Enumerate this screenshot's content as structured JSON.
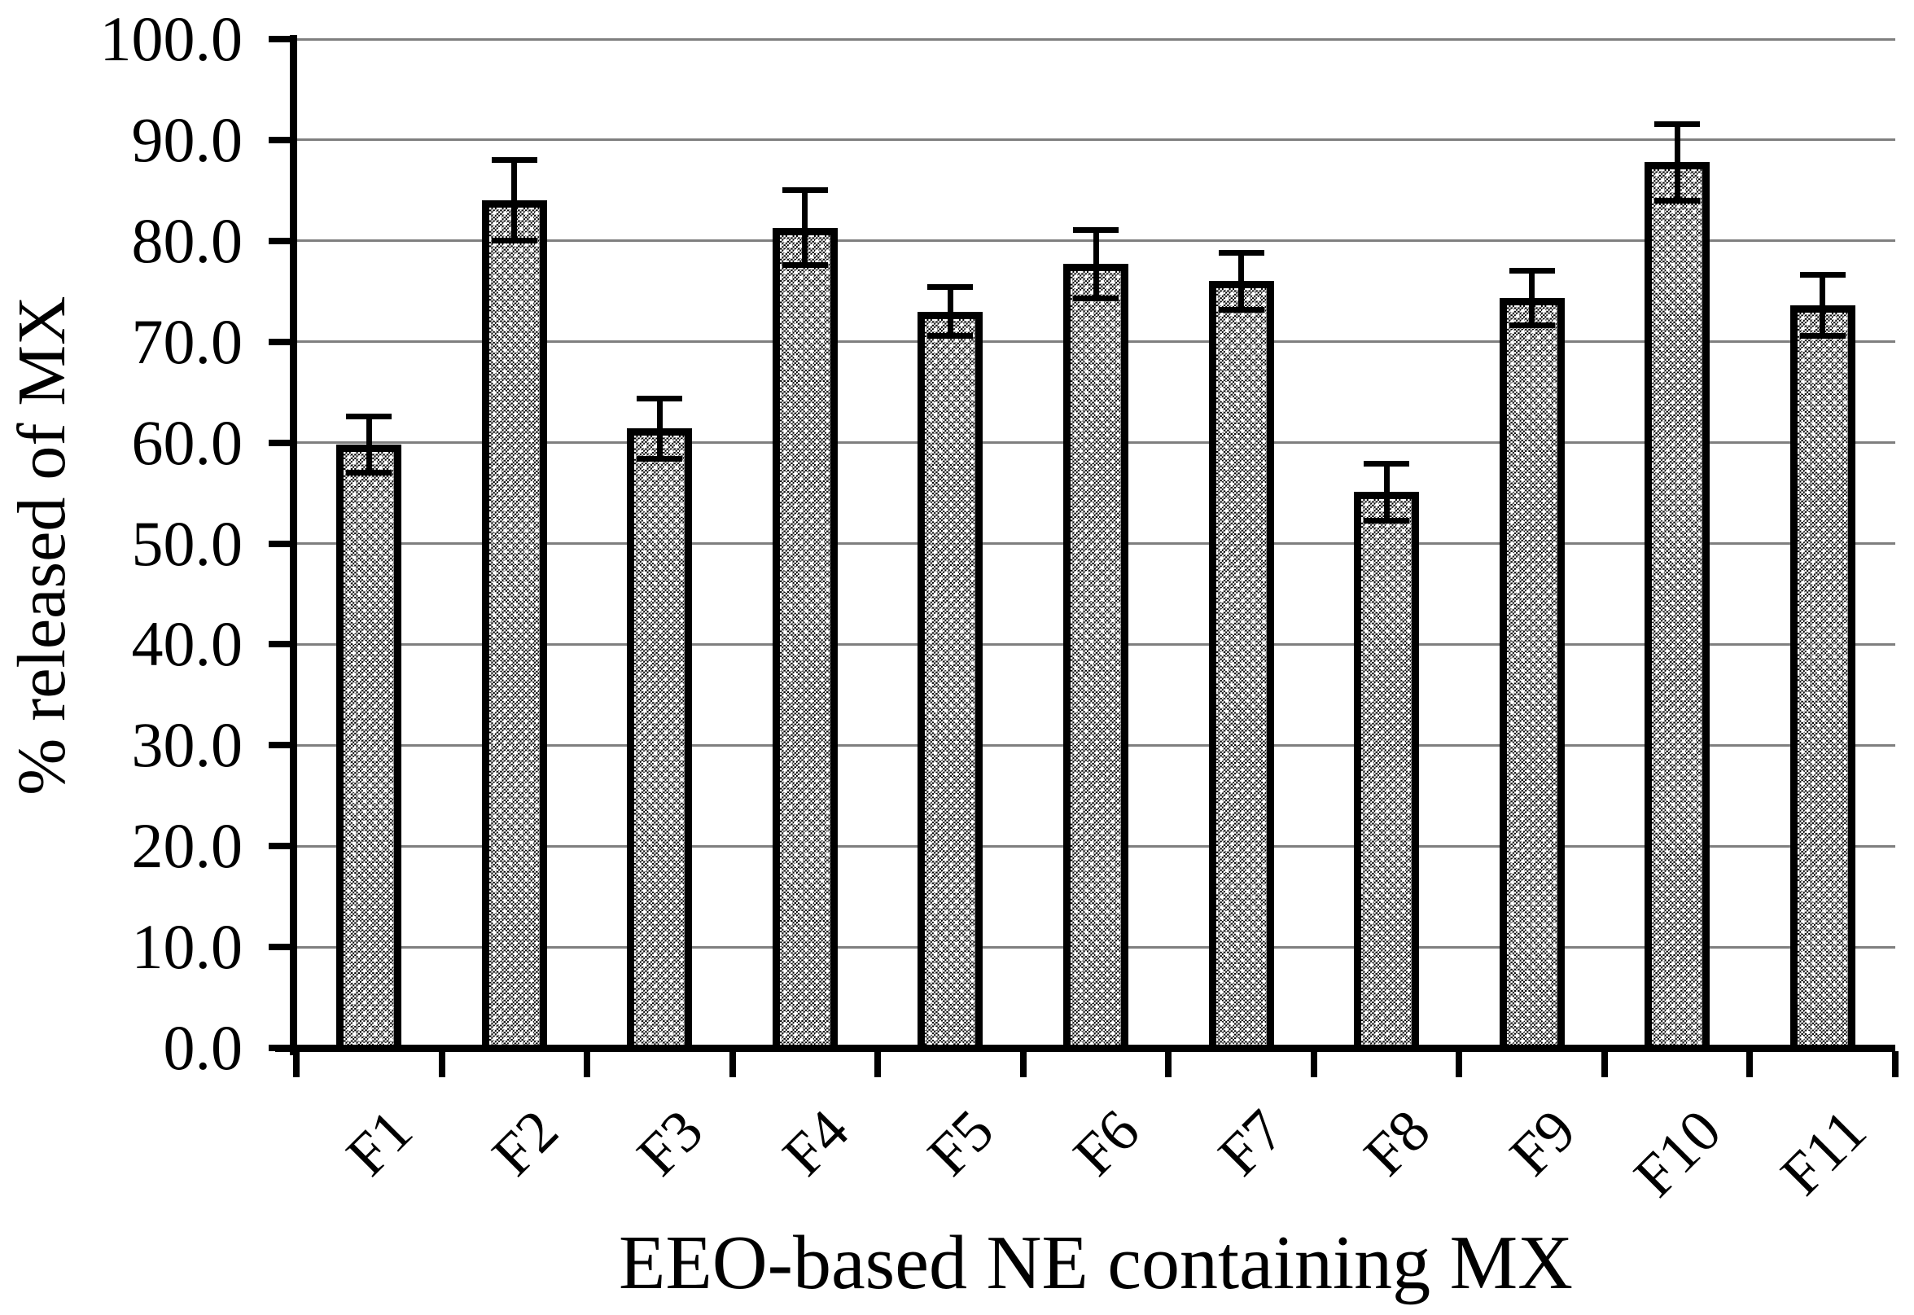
{
  "chart_data": {
    "type": "bar",
    "title": "",
    "xlabel": "EEO-based NE containing MX",
    "ylabel": "% released of MX",
    "categories": [
      "F1",
      "F2",
      "F3",
      "F4",
      "F5",
      "F6",
      "F7",
      "F8",
      "F9",
      "F10",
      "F11"
    ],
    "series": [
      {
        "name": "% released of MX",
        "values": [
          59.8,
          84.0,
          61.4,
          81.3,
          73.0,
          77.7,
          76.0,
          55.1,
          74.3,
          87.8,
          73.6
        ],
        "errors": [
          2.8,
          4.0,
          3.0,
          3.7,
          2.4,
          3.4,
          2.8,
          2.8,
          2.7,
          3.8,
          3.0
        ]
      }
    ],
    "ylim": [
      0,
      100
    ],
    "ytick_step": 10,
    "ytick_labels": [
      "0.0",
      "10.0",
      "20.0",
      "30.0",
      "40.0",
      "50.0",
      "60.0",
      "70.0",
      "80.0",
      "90.0",
      "100.0"
    ],
    "grid": true,
    "legend": false,
    "bar_style": "dotted-checker-pattern-with-black-border",
    "error_bars": "plus-minus-caps",
    "colors": {
      "background": "#ffffff",
      "axis": "#000000",
      "gridline": "#7f7f7f",
      "text": "#000000",
      "bar_border": "#000000"
    }
  }
}
